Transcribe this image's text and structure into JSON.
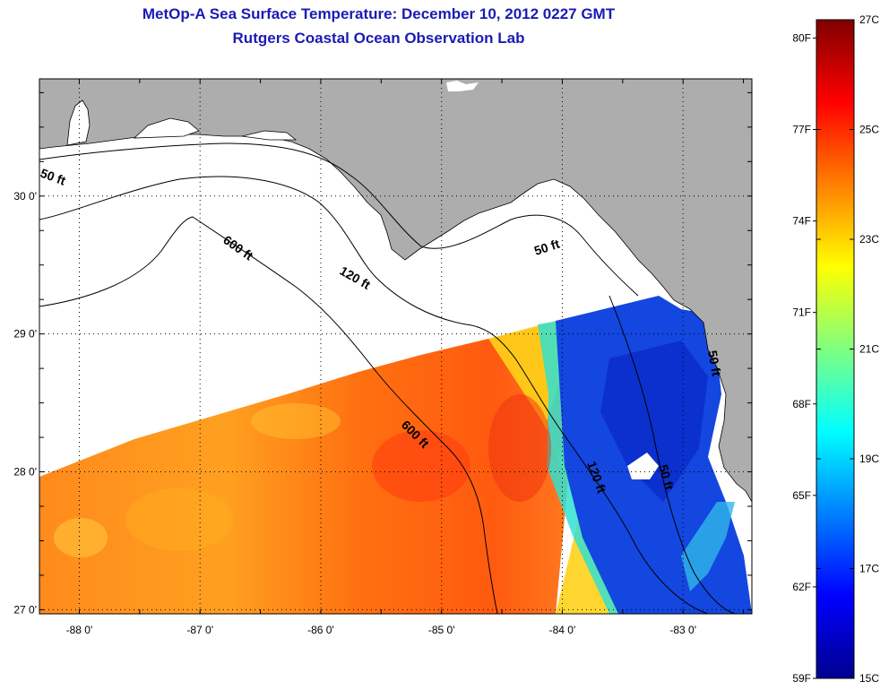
{
  "title": {
    "line1": "MetOp-A Sea Surface Temperature:  December 10, 2012 0227 GMT",
    "line2": "Rutgers Coastal Ocean Observation Lab"
  },
  "map": {
    "lon_range": [
      -88.33,
      -82.43
    ],
    "lat_range": [
      26.97,
      30.85
    ],
    "lon_ticks": [
      {
        "value": -88,
        "label": "-88 0'"
      },
      {
        "value": -87,
        "label": "-87 0'"
      },
      {
        "value": -86,
        "label": "-86 0'"
      },
      {
        "value": -85,
        "label": "-85 0'"
      },
      {
        "value": -84,
        "label": "-84 0'"
      },
      {
        "value": -83,
        "label": "-83 0'"
      }
    ],
    "lat_ticks": [
      {
        "value": 27,
        "label": "27 0'"
      },
      {
        "value": 28,
        "label": "28 0'"
      },
      {
        "value": 29,
        "label": "29 0'"
      },
      {
        "value": 30,
        "label": "30 0'"
      }
    ],
    "grid": "dotted",
    "colors": {
      "land": "#adadad",
      "no_data": "#ffffff",
      "contour": "#000000"
    },
    "contour_labels": {
      "shelf_50": "50 ft",
      "shelf_50_east": "50 ft",
      "shelf_50_southeast": "50 ft",
      "shelf_50_coast": "50 ft",
      "depth_120": "120 ft",
      "depth_120_south": "120 ft",
      "depth_600": "600 ft",
      "depth_600_south": "600 ft"
    }
  },
  "colorbar": {
    "celsius": [
      {
        "value": 27,
        "label": "27C"
      },
      {
        "value": 25,
        "label": "25C"
      },
      {
        "value": 23,
        "label": "23C"
      },
      {
        "value": 21,
        "label": "21C"
      },
      {
        "value": 19,
        "label": "19C"
      },
      {
        "value": 17,
        "label": "17C"
      },
      {
        "value": 15,
        "label": "15C"
      }
    ],
    "fahrenheit": [
      {
        "value": 80,
        "label": "80F"
      },
      {
        "value": 77,
        "label": "77F"
      },
      {
        "value": 74,
        "label": "74F"
      },
      {
        "value": 71,
        "label": "71F"
      },
      {
        "value": 68,
        "label": "68F"
      },
      {
        "value": 65,
        "label": "65F"
      },
      {
        "value": 62,
        "label": "62F"
      },
      {
        "value": 59,
        "label": "59F"
      }
    ],
    "range_c": [
      15,
      27
    ],
    "palette": "jet",
    "colors": [
      "#00008f",
      "#0000ff",
      "#0080ff",
      "#00ffff",
      "#80ff80",
      "#ffff00",
      "#ff8000",
      "#ff0000",
      "#800000"
    ]
  }
}
